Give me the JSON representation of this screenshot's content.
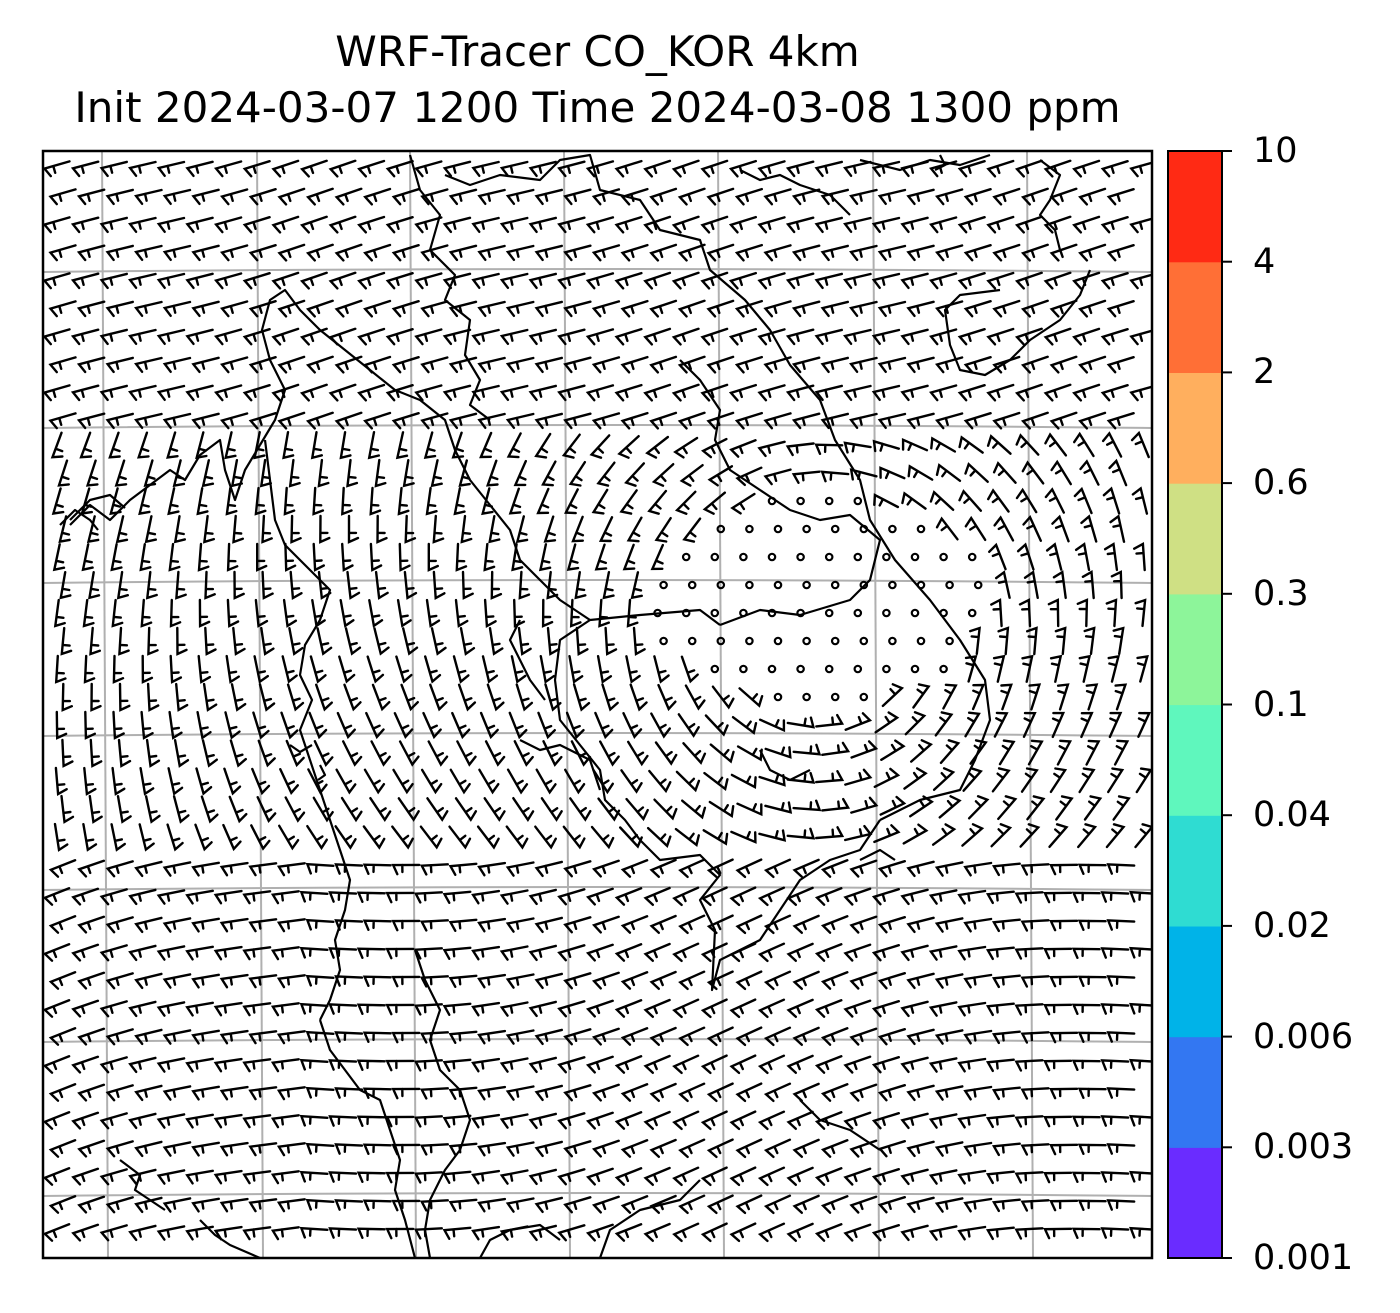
{
  "title": {
    "line1": "WRF-Tracer CO_KOR 4km",
    "line2": "Init 2024-03-07 1200 Time 2024-03-08 1300 ppm"
  },
  "colorbar": {
    "levels": [
      "0.001",
      "0.003",
      "0.006",
      "0.02",
      "0.04",
      "0.1",
      "0.3",
      "0.6",
      "2",
      "4",
      "10"
    ],
    "colors": [
      "#6a2cff",
      "#3377f2",
      "#00b3e8",
      "#2fdcd2",
      "#5ff7bd",
      "#8df59a",
      "#cfe084",
      "#ffaf5e",
      "#ff6f36",
      "#ff2a14"
    ]
  },
  "map": {
    "gridline_color": "#b0b0b0",
    "coastline_color": "#000000",
    "barb_color": "#000000"
  }
}
